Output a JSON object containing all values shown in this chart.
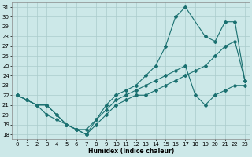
{
  "xlabel": "Humidex (Indice chaleur)",
  "background_color": "#cce8e8",
  "grid_color": "#aacccc",
  "line_color": "#1a7070",
  "xlim": [
    -0.5,
    23.5
  ],
  "ylim": [
    17.5,
    31.5
  ],
  "xticks": [
    0,
    1,
    2,
    3,
    4,
    5,
    6,
    7,
    8,
    9,
    10,
    11,
    12,
    13,
    14,
    15,
    16,
    17,
    18,
    19,
    20,
    21,
    22,
    23
  ],
  "yticks": [
    18,
    19,
    20,
    21,
    22,
    23,
    24,
    25,
    26,
    27,
    28,
    29,
    30,
    31
  ],
  "line1_x": [
    0,
    1,
    2,
    3,
    4,
    5,
    6,
    7,
    8,
    9,
    10,
    11,
    12,
    13,
    14,
    15,
    16,
    17,
    18,
    19,
    20,
    21,
    22,
    23
  ],
  "line1_y": [
    22,
    21.5,
    21,
    21,
    20,
    19,
    18.5,
    18,
    19,
    20,
    21,
    21.5,
    22,
    22,
    22.5,
    23,
    23.5,
    24,
    24.5,
    25,
    26,
    27,
    27.5,
    23.5
  ],
  "line2_x": [
    0,
    2,
    3,
    4,
    5,
    6,
    7,
    8,
    9,
    10,
    11,
    12,
    13,
    14,
    15,
    16,
    17,
    19,
    20,
    21,
    22,
    23
  ],
  "line2_y": [
    22,
    21,
    20,
    19.5,
    19,
    18.5,
    18,
    19.5,
    21,
    22,
    22.5,
    23,
    24,
    25,
    27,
    30,
    31,
    28,
    27.5,
    29.5,
    29.5,
    23.5
  ],
  "line3_x": [
    0,
    1,
    2,
    3,
    4,
    5,
    6,
    7,
    8,
    9,
    10,
    11,
    12,
    13,
    14,
    15,
    16,
    17,
    18,
    19,
    20,
    21,
    22,
    23
  ],
  "line3_y": [
    22,
    21.5,
    21,
    21,
    20,
    19,
    18.5,
    18.5,
    19.5,
    20.5,
    21.5,
    22,
    22.5,
    23,
    23.5,
    24,
    24.5,
    25,
    22,
    21,
    22,
    22.5,
    23,
    23
  ]
}
